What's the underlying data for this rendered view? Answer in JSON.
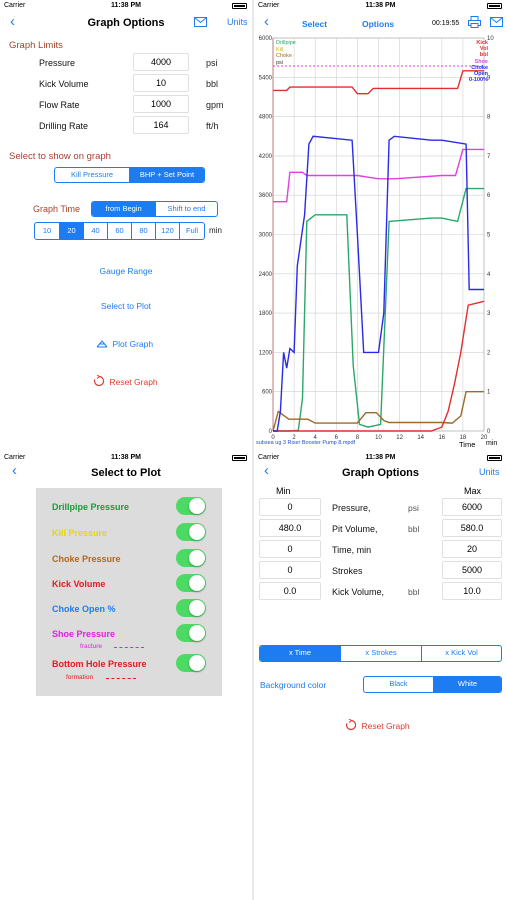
{
  "status": {
    "carrier": "Carrier",
    "time": "11:38 PM"
  },
  "graph_options_1": {
    "title": "Graph Options",
    "units_label": "Units",
    "graph_limits_header": "Graph Limits",
    "limits": [
      {
        "label": "Pressure",
        "value": "4000",
        "unit": "psi"
      },
      {
        "label": "Kick Volume",
        "value": "10",
        "unit": "bbl"
      },
      {
        "label": "Flow Rate",
        "value": "1000",
        "unit": "gpm"
      },
      {
        "label": "Drilling Rate",
        "value": "164",
        "unit": "ft/h"
      }
    ],
    "select_header": "Select to show on graph",
    "show_options": [
      "Kill Pressure",
      "BHP + Set Point"
    ],
    "graph_time_label": "Graph Time",
    "time_mode": [
      "from Begin",
      "Shift to end"
    ],
    "time_values": [
      "10",
      "20",
      "40",
      "60",
      "80",
      "120",
      "Full"
    ],
    "time_unit": "min",
    "gauge_range": "Gauge Range",
    "select_to_plot": "Select to Plot",
    "plot_graph": "Plot Graph",
    "reset_graph": "Reset Graph"
  },
  "graph_view": {
    "select_label": "Select",
    "options_label": "Options",
    "timer": "00:19:55",
    "legend_left": [
      "Drillpipe",
      "Kill",
      "Choke",
      "psi"
    ],
    "legend_right": [
      "Kick",
      "Vol",
      "bbl",
      "Shoe",
      "Choke",
      "Open",
      "0-100%"
    ],
    "footer": "subsea ug 3 Riser Booster Pump 8.mpdf",
    "time_label": "Time",
    "time_unit": "min",
    "colors": {
      "drillpipe": "#2aa86a",
      "kill": "#e0c000",
      "choke": "#9a6a2a",
      "kick": "#e32f2f",
      "shoe": "#e040e0",
      "chokeopen": "#2a2ae8"
    }
  },
  "chart_data": {
    "type": "line",
    "xlabel": "Time",
    "xunit": "min",
    "x_ticks": [
      0,
      2,
      4,
      6,
      8,
      10,
      12,
      14,
      16,
      18,
      20
    ],
    "xlim": [
      0,
      20
    ],
    "y_left_ticks": [
      0,
      600,
      1200,
      1800,
      2400,
      3000,
      3600,
      4200,
      4800,
      5400,
      6000
    ],
    "ylim_left": [
      0,
      6000
    ],
    "y_right_ticks": [
      0,
      1,
      2,
      3,
      4,
      5,
      6,
      7,
      8,
      9,
      10
    ],
    "ylim_right": [
      0,
      10
    ],
    "series": [
      {
        "name": "Drillpipe",
        "axis": "left",
        "color": "#2aa86a",
        "x": [
          0,
          1.5,
          2.4,
          2.8,
          3.2,
          4,
          7,
          7.6,
          8.2,
          9,
          10.2,
          11,
          15,
          16,
          17.5,
          18.3,
          20
        ],
        "y": [
          0,
          0,
          10,
          500,
          3200,
          3300,
          3300,
          1000,
          100,
          60,
          100,
          3200,
          3250,
          3250,
          3200,
          3700,
          3700
        ]
      },
      {
        "name": "Choke",
        "axis": "left",
        "color": "#9a6a2a",
        "x": [
          0,
          0.5,
          1.5,
          3.3,
          4,
          8,
          8.8,
          9.8,
          10.5,
          11,
          12,
          16,
          17,
          17.8,
          18.3,
          20
        ],
        "y": [
          0,
          300,
          180,
          180,
          120,
          120,
          280,
          280,
          160,
          130,
          130,
          130,
          120,
          230,
          600,
          600
        ]
      },
      {
        "name": "Shoe",
        "axis": "left",
        "color": "#e040e0",
        "x": [
          0,
          1.3,
          1.6,
          2.8,
          3.2,
          8,
          10,
          11.5,
          16,
          17.3,
          18,
          20
        ],
        "y": [
          3500,
          3500,
          3950,
          3950,
          3900,
          3900,
          3850,
          3850,
          3900,
          3900,
          4300,
          4300
        ]
      },
      {
        "name": "BHP",
        "axis": "left",
        "color": "#e32f2f",
        "x": [
          0,
          1.3,
          1.6,
          7.5,
          8,
          9,
          9.5,
          12,
          17.5,
          18,
          20
        ],
        "y": [
          5200,
          5200,
          5250,
          5250,
          5150,
          5150,
          5230,
          5230,
          5230,
          5500,
          5500
        ]
      },
      {
        "name": "Kick Vol",
        "axis": "right",
        "color": "#e32f2f",
        "x": [
          0,
          15,
          16,
          16.6,
          17.2,
          17.8,
          18.5,
          20
        ],
        "y": [
          0,
          0,
          0.1,
          0.5,
          1.2,
          2,
          3.2,
          3.3
        ]
      },
      {
        "name": "Choke Open",
        "axis": "right",
        "color": "#2a2ae8",
        "x": [
          0,
          0.4,
          0.7,
          1,
          1.3,
          1.6,
          2,
          2.3,
          3,
          3.4,
          3.8,
          7.5,
          8,
          8.6,
          10,
          10.5,
          11,
          11.5,
          15,
          16,
          18.3,
          18.6,
          20
        ],
        "y": [
          0,
          0,
          0.5,
          2,
          1.6,
          2.1,
          2,
          4.2,
          5.5,
          7.3,
          7.5,
          7.4,
          5,
          2,
          2,
          3,
          7.4,
          7.5,
          7.4,
          7.4,
          7.3,
          3.6,
          3.6
        ]
      }
    ]
  },
  "select_to_plot": {
    "title": "Select to Plot",
    "rows": [
      {
        "label": "Drillpipe Pressure",
        "color": "#1e9a3a"
      },
      {
        "label": "Kill Pressure",
        "color": "#e8d800"
      },
      {
        "label": "Choke Pressure",
        "color": "#b5651d"
      },
      {
        "label": "Kick Volume",
        "color": "#e21b1b"
      },
      {
        "label": "Choke Open %",
        "color": "#1e7cf2"
      },
      {
        "label": "Shoe Pressure",
        "color": "#e020e0"
      },
      {
        "label": "Bottom Hole Pressure",
        "color": "#e21b1b"
      }
    ],
    "shoe_sub": "fracture",
    "bhp_sub": "formation"
  },
  "graph_options_2": {
    "title": "Graph Options",
    "units_label": "Units",
    "min_header": "Min",
    "max_header": "Max",
    "rows": [
      {
        "min": "0",
        "label": "Pressure,",
        "unit": "psi",
        "max": "6000"
      },
      {
        "min": "480.0",
        "label": "Pit Volume,",
        "unit": "bbl",
        "max": "580.0"
      },
      {
        "min": "0",
        "label": "Time, min",
        "unit": "",
        "max": "20"
      },
      {
        "min": "0",
        "label": "Strokes",
        "unit": "",
        "max": "5000"
      },
      {
        "min": "0.0",
        "label": "Kick Volume,",
        "unit": "bbl",
        "max": "10.0"
      }
    ],
    "x_axis": [
      "x Time",
      "x Strokes",
      "x Kick Vol"
    ],
    "bg_label": "Background color",
    "bg_options": [
      "Black",
      "White"
    ],
    "reset_graph": "Reset Graph"
  }
}
